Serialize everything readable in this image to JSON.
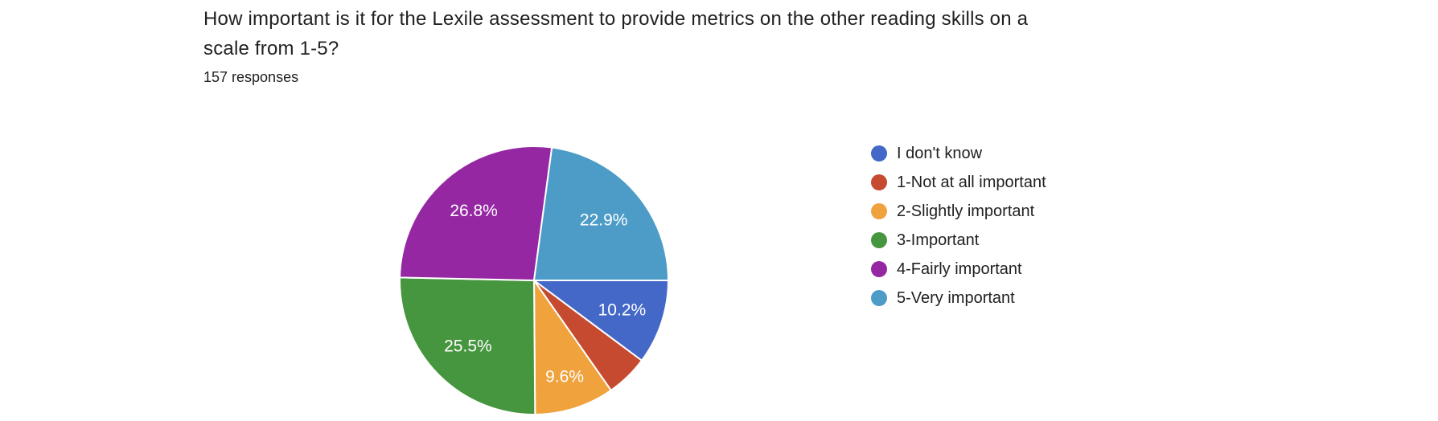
{
  "header": {
    "title": "How important is it for the Lexile assessment to provide metrics on the other reading skills on a\nscale from 1-5?",
    "responses_label": "157 responses"
  },
  "colors": {
    "background": "#ffffff",
    "title_text": "#212121",
    "slice_label_text": "#ffffff",
    "slice_border": "#ffffff"
  },
  "chart_data": {
    "type": "pie",
    "title": "How important is it for the Lexile assessment to provide metrics on the other reading skills on a scale from 1-5?",
    "subtitle": "157 responses",
    "total_responses": 157,
    "legend_position": "right",
    "start_angle_deg": 90,
    "direction": "clockwise",
    "donut": false,
    "slices": [
      {
        "label": "I don't know",
        "percent": 10.2,
        "value_label": "10.2%",
        "color": "#4368C8"
      },
      {
        "label": "1-Not at all important",
        "percent": 5.1,
        "value_label": "",
        "color": "#C54A30"
      },
      {
        "label": "2-Slightly important",
        "percent": 9.6,
        "value_label": "9.6%",
        "color": "#F0A23D"
      },
      {
        "label": "3-Important",
        "percent": 25.5,
        "value_label": "25.5%",
        "color": "#46953F"
      },
      {
        "label": "4-Fairly important",
        "percent": 26.8,
        "value_label": "26.8%",
        "color": "#9627A3"
      },
      {
        "label": "5-Very important",
        "percent": 22.9,
        "value_label": "22.9%",
        "color": "#4D9CC7"
      }
    ]
  }
}
